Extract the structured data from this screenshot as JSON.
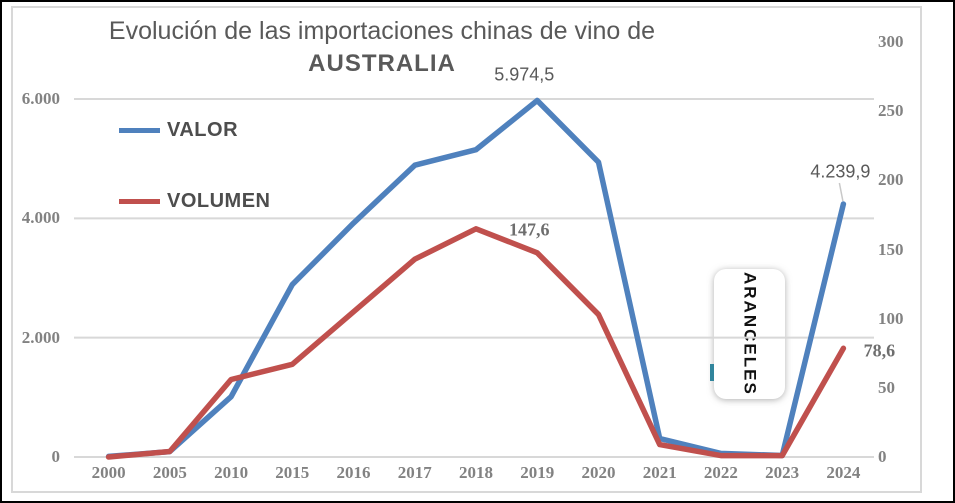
{
  "title": {
    "line1": "Evolución de las importaciones chinas de vino de",
    "line2": "AUSTRALIA"
  },
  "legend": {
    "items": [
      {
        "label": "VALOR",
        "color": "#4F81BD"
      },
      {
        "label": "VOLUMEN",
        "color": "#C0504D"
      }
    ]
  },
  "axes": {
    "left": {
      "ticks": [
        {
          "label": "6.000",
          "value": 6000
        },
        {
          "label": "4.000",
          "value": 4000
        },
        {
          "label": "2.000",
          "value": 2000
        },
        {
          "label": "0",
          "value": 0
        }
      ]
    },
    "right": {
      "ticks": [
        {
          "label": "300",
          "value": 300
        },
        {
          "label": "250",
          "value": 250
        },
        {
          "label": "200",
          "value": 200
        },
        {
          "label": "150",
          "value": 150
        },
        {
          "label": "100",
          "value": 100
        },
        {
          "label": "50",
          "value": 50
        },
        {
          "label": "0",
          "value": 0
        }
      ]
    },
    "x": {
      "ticks": [
        "2000",
        "2005",
        "2010",
        "2015",
        "2016",
        "2017",
        "2018",
        "2019",
        "2020",
        "2021",
        "2022",
        "2023",
        "2024"
      ]
    }
  },
  "annotation_box": {
    "label": "ARANCELES"
  },
  "data_labels": [
    {
      "id": "valor-2019",
      "text": "5.974,5",
      "style": "sans",
      "leader": false
    },
    {
      "id": "volumen-2019",
      "text": "147,6",
      "style": "serif",
      "leader": false
    },
    {
      "id": "valor-2024",
      "text": "4.239,9",
      "style": "sans",
      "leader": true
    },
    {
      "id": "volumen-2024",
      "text": "78,6",
      "style": "serif",
      "leader": false
    }
  ],
  "colors": {
    "valor": "#4F81BD",
    "volumen": "#C0504D",
    "grid": "#D8D8D8",
    "axis_text": "#828282",
    "title_text": "#595959",
    "tariff_mark": "#31859C"
  },
  "chart_data": {
    "type": "line",
    "title": "Evolución de las importaciones chinas de vino de AUSTRALIA",
    "categories": [
      "2000",
      "2005",
      "2010",
      "2015",
      "2016",
      "2017",
      "2018",
      "2019",
      "2020",
      "2021",
      "2022",
      "2023",
      "2024"
    ],
    "series": [
      {
        "name": "VALOR",
        "axis": "left",
        "color": "#4F81BD",
        "values": [
          10,
          90,
          1010,
          2890,
          3920,
          4890,
          5150,
          5974.5,
          4940,
          310,
          60,
          25,
          4239.9
        ]
      },
      {
        "name": "VOLUMEN",
        "axis": "right",
        "color": "#C0504D",
        "values": [
          0,
          4,
          56,
          67,
          105,
          143,
          165,
          147.6,
          103,
          9,
          1,
          1,
          78.6
        ]
      }
    ],
    "left_ylim": [
      0,
      6000
    ],
    "right_ylim": [
      0,
      300
    ],
    "grid": "horizontal",
    "legend_position": "upper-left-inside",
    "point_labels": [
      {
        "series": "VALOR",
        "category": "2019",
        "text": "5.974,5"
      },
      {
        "series": "VOLUMEN",
        "category": "2019",
        "text": "147,6"
      },
      {
        "series": "VALOR",
        "category": "2024",
        "text": "4.239,9"
      },
      {
        "series": "VOLUMEN",
        "category": "2024",
        "text": "78,6"
      }
    ],
    "annotation": "ARANCELES"
  }
}
